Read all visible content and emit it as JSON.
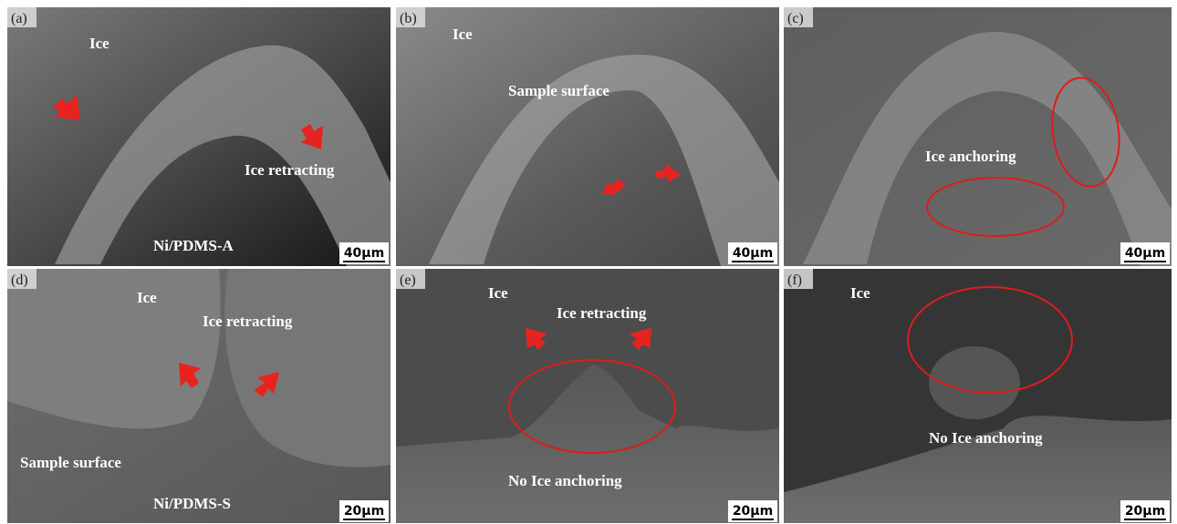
{
  "panels": [
    {
      "label": "(a)",
      "annotations": [
        "Ice",
        "Ice retracting",
        "Ni/PDMS-A"
      ],
      "scale": "40μm"
    },
    {
      "label": "(b)",
      "annotations": [
        "Ice",
        "Sample surface"
      ],
      "scale": "40μm"
    },
    {
      "label": "(c)",
      "annotations": [
        "Ice anchoring"
      ],
      "scale": "40μm"
    },
    {
      "label": "(d)",
      "annotations": [
        "Ice",
        "Ice retracting",
        "Sample surface",
        "Ni/PDMS-S"
      ],
      "scale": "20μm"
    },
    {
      "label": "(e)",
      "annotations": [
        "Ice",
        "Ice retracting",
        "No Ice anchoring"
      ],
      "scale": "20μm"
    },
    {
      "label": "(f)",
      "annotations": [
        "Ice",
        "No Ice anchoring"
      ],
      "scale": "20μm"
    }
  ]
}
